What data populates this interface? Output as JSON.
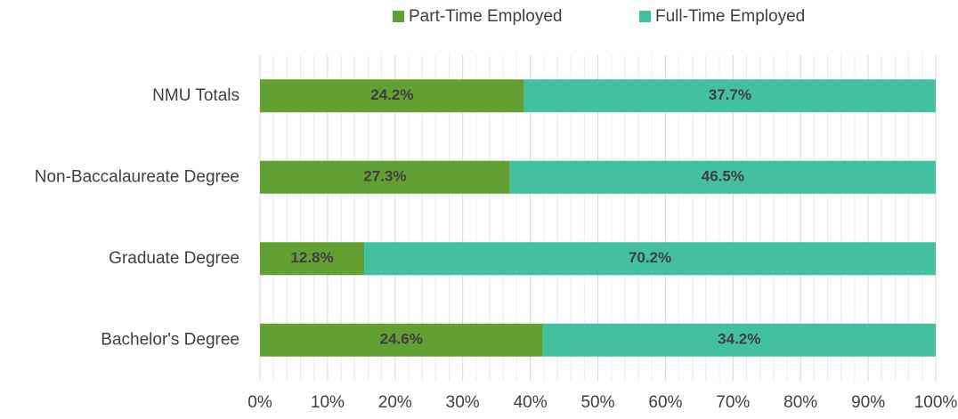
{
  "chart_data": {
    "type": "bar",
    "orientation": "horizontal",
    "stacking": "percent",
    "categories": [
      "NMU Totals",
      "Non-Baccalaureate Degree",
      "Graduate Degree",
      "Bachelor's Degree"
    ],
    "series": [
      {
        "name": "Part-Time Employed",
        "color": "#62a033",
        "values": [
          24.2,
          27.3,
          12.8,
          24.6
        ],
        "value_labels": [
          "24.2%",
          "27.3%",
          "12.8%",
          "24.6%"
        ]
      },
      {
        "name": "Full-Time Employed",
        "color": "#42c0a0",
        "values": [
          37.7,
          46.5,
          70.2,
          34.2
        ],
        "value_labels": [
          "37.7%",
          "46.5%",
          "70.2%",
          "34.2%"
        ]
      }
    ],
    "xlim": [
      0,
      100
    ],
    "xticks": [
      {
        "value": 0,
        "label": "0%"
      },
      {
        "value": 10,
        "label": "10%"
      },
      {
        "value": 20,
        "label": "20%"
      },
      {
        "value": 30,
        "label": "30%"
      },
      {
        "value": 40,
        "label": "40%"
      },
      {
        "value": 50,
        "label": "50%"
      },
      {
        "value": 60,
        "label": "60%"
      },
      {
        "value": 70,
        "label": "70%"
      },
      {
        "value": 80,
        "label": "80%"
      },
      {
        "value": 90,
        "label": "90%"
      },
      {
        "value": 100,
        "label": "100%"
      }
    ],
    "grid": true,
    "legend": "top"
  }
}
